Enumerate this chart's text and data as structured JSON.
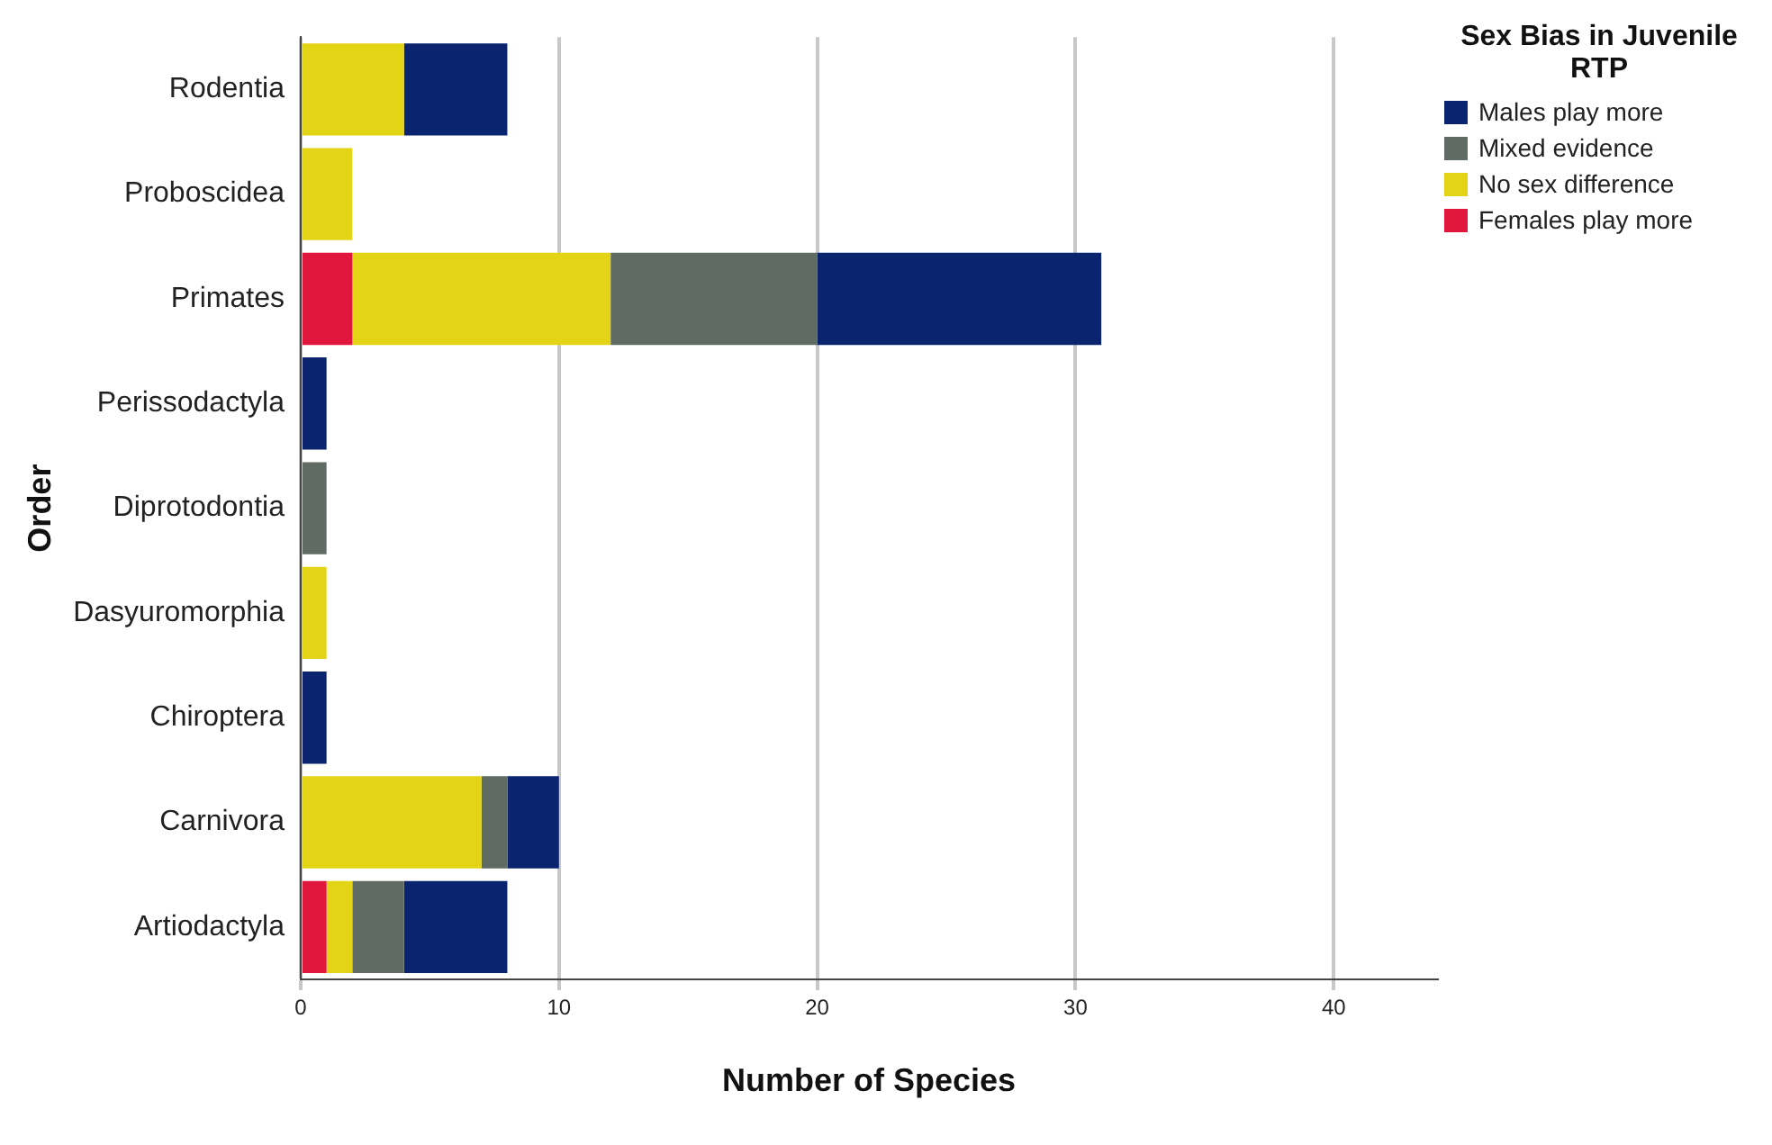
{
  "chart_data": {
    "type": "bar",
    "orientation": "horizontal",
    "stacked": true,
    "xlabel": "Number of Species",
    "ylabel": "Order",
    "legend_title": "Sex Bias in Juvenile RTP",
    "legend": "top right",
    "grid": "x",
    "categories": [
      "Rodentia",
      "Proboscidea",
      "Primates",
      "Perissodactyla",
      "Diprotodontia",
      "Dasyuromorphia",
      "Chiroptera",
      "Carnivora",
      "Artiodactyla"
    ],
    "series": [
      {
        "name": "Females play more",
        "color": "#e0163c",
        "values": [
          0,
          0,
          2,
          0,
          0,
          0,
          0,
          0,
          1
        ]
      },
      {
        "name": "No sex difference",
        "color": "#e3d516",
        "values": [
          4,
          2,
          10,
          0,
          0,
          1,
          0,
          7,
          1
        ]
      },
      {
        "name": "Mixed evidence",
        "color": "#5f6b63",
        "values": [
          0,
          0,
          8,
          0,
          1,
          0,
          0,
          1,
          2
        ]
      },
      {
        "name": "Males play more",
        "color": "#0b2470",
        "values": [
          4,
          0,
          11,
          1,
          0,
          0,
          1,
          2,
          4
        ]
      }
    ],
    "xlim": [
      0,
      44
    ],
    "xticks": [
      0,
      10,
      20,
      30,
      40
    ]
  }
}
